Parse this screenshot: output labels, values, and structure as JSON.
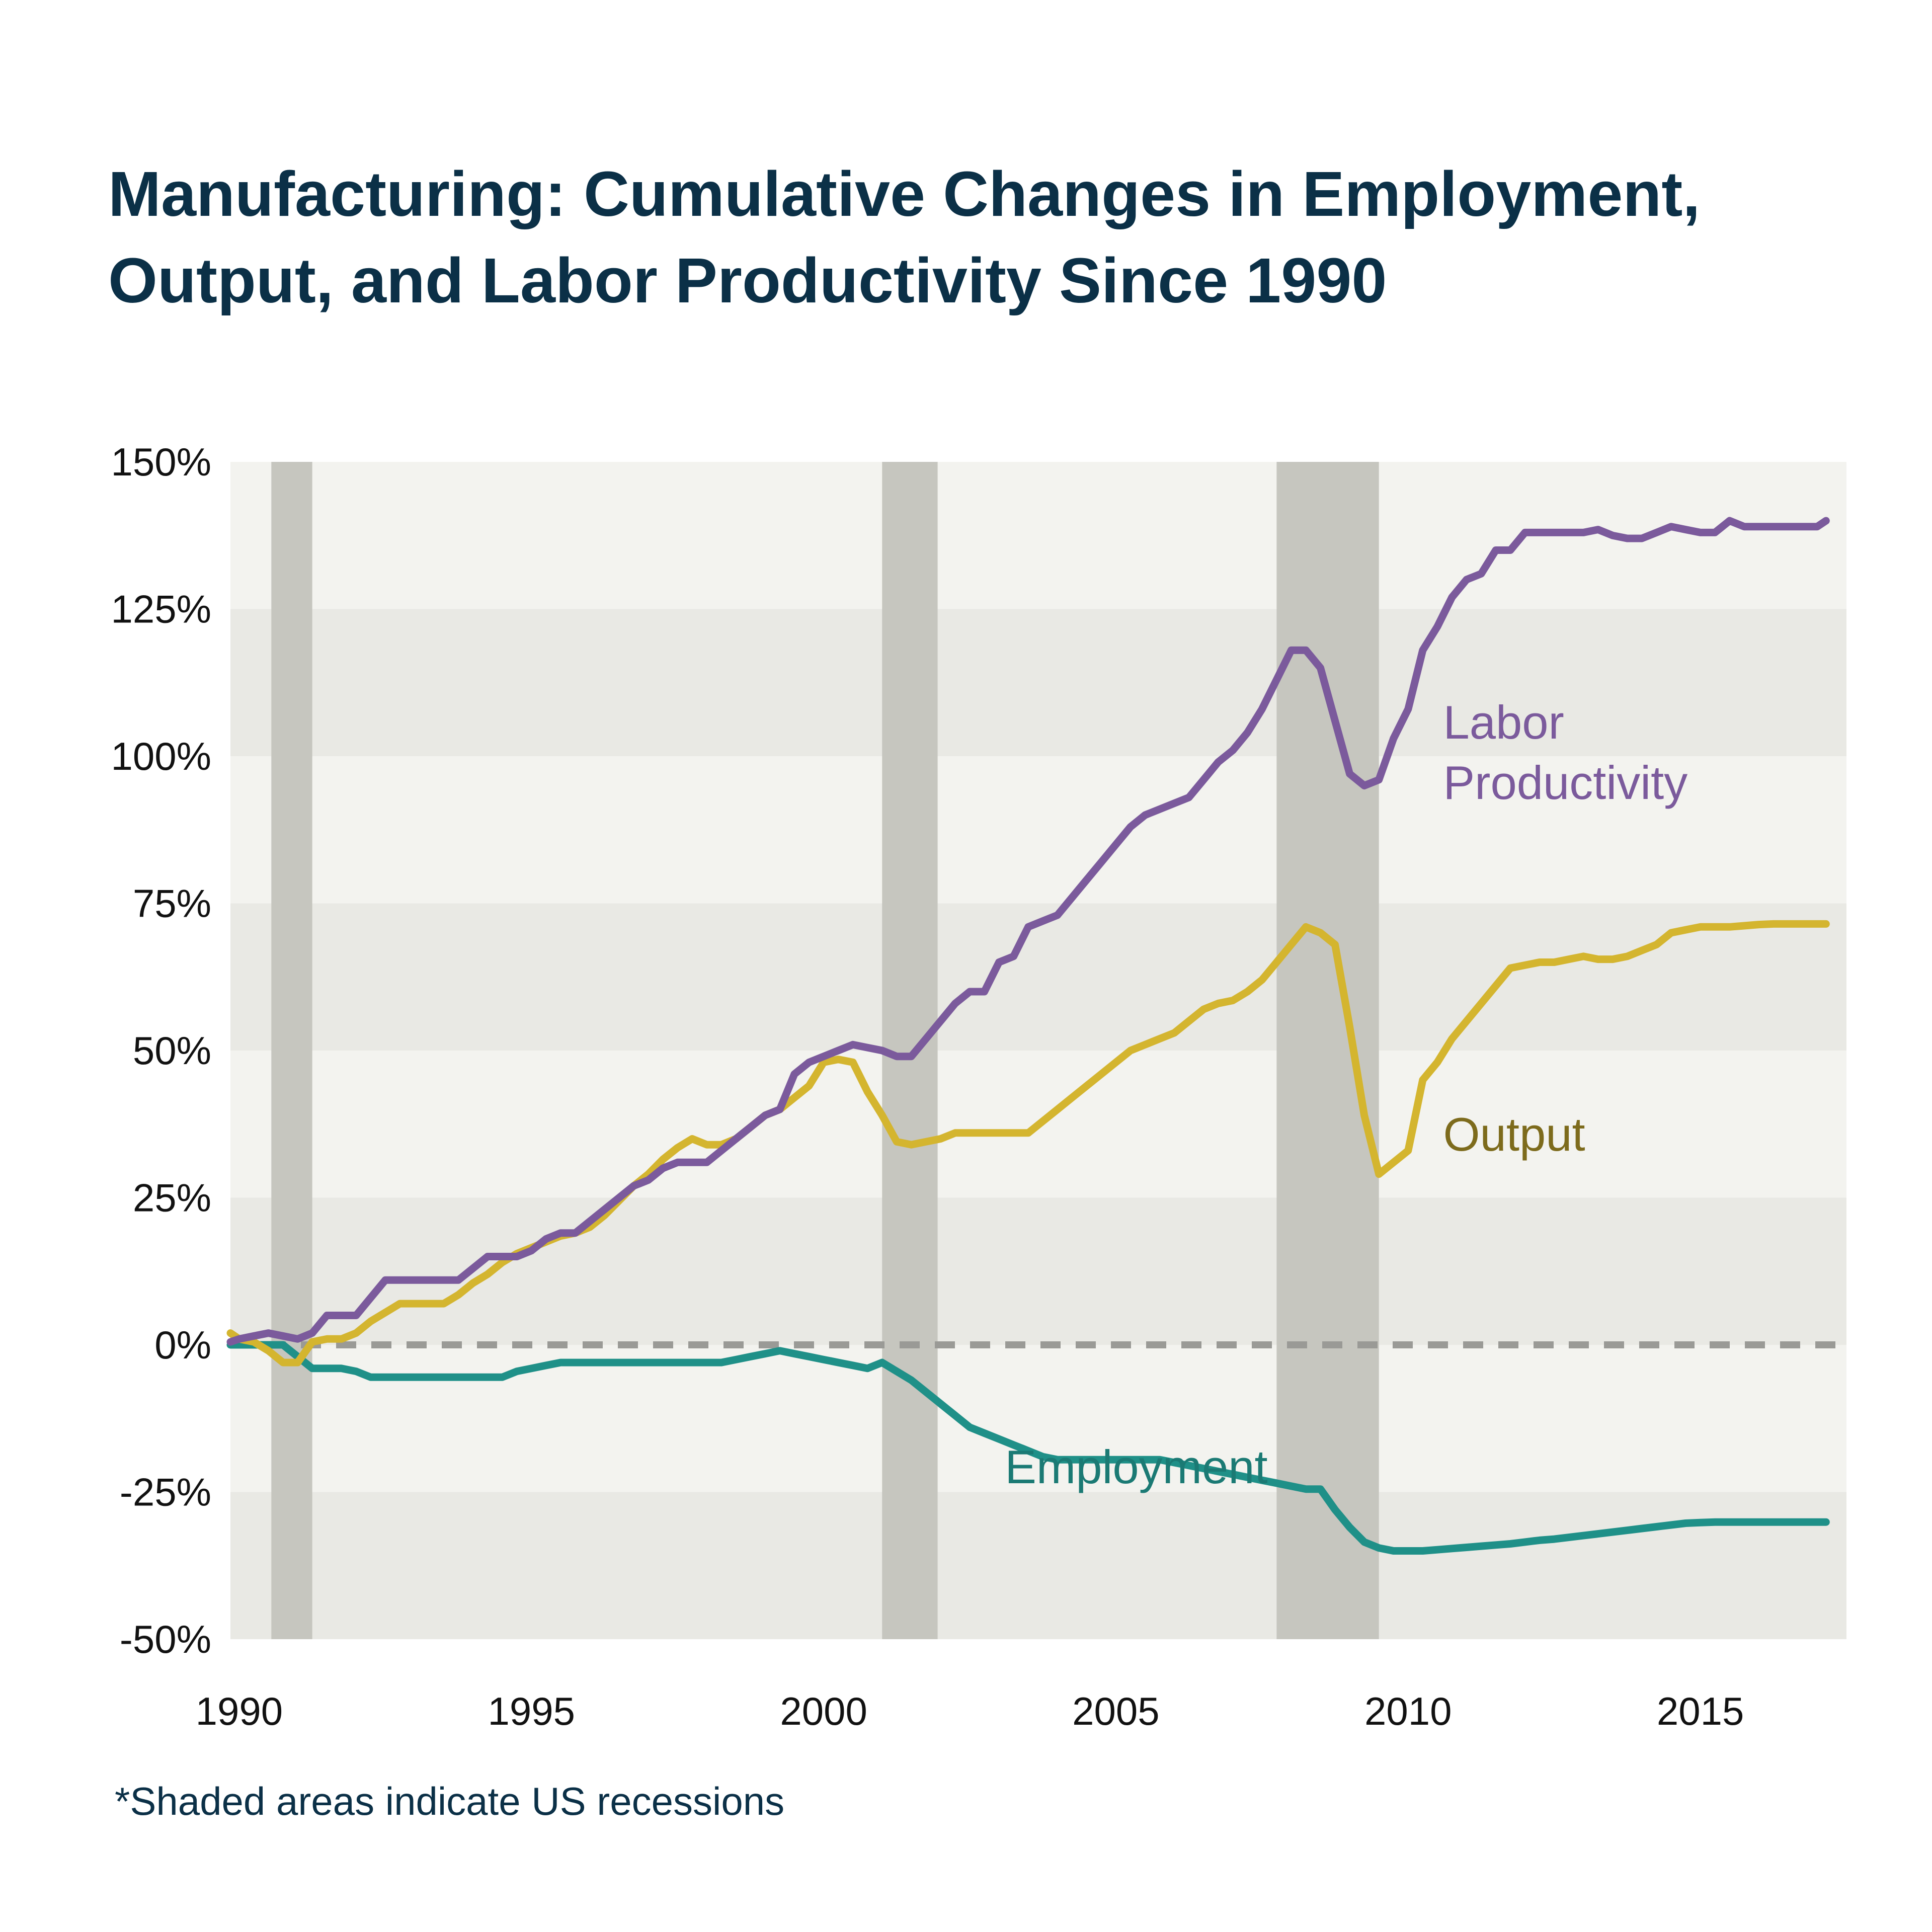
{
  "title_line1": "Manufacturing: Cumulative Changes in Employment,",
  "title_line2": "Output, and Labor Productivity Since 1990",
  "footnote": "*Shaded areas indicate US recessions",
  "colors": {
    "labor_productivity": "#7b5a9c",
    "output": "#d4b52f",
    "output_label": "#7d6b1c",
    "employment": "#1f9088",
    "employment_label": "#1b7a74",
    "recession_band": "#c6c6bf",
    "band_light": "#f3f3ef",
    "band_dark": "#e9e9e4",
    "zero_line": "#9a9a96",
    "title": "#0b3047"
  },
  "chart_data": {
    "type": "line",
    "title": "Manufacturing: Cumulative Changes in Employment, Output, and Labor Productivity Since 1990",
    "xlabel": "",
    "ylabel": "",
    "xlim": [
      1989.85,
      2017.5
    ],
    "ylim": [
      -50,
      150
    ],
    "x_ticks": [
      1990,
      1995,
      2000,
      2005,
      2010,
      2015
    ],
    "y_ticks": [
      150,
      125,
      100,
      75,
      50,
      25,
      0,
      -25,
      -50
    ],
    "y_tick_labels": [
      "150%",
      "125%",
      "100%",
      "75%",
      "50%",
      "25%",
      "0%",
      "-25%",
      "-50%"
    ],
    "recessions": [
      [
        1990.55,
        1991.25
      ],
      [
        2001.0,
        2001.95
      ],
      [
        2007.75,
        2009.5
      ]
    ],
    "series": [
      {
        "name": "Labor Productivity",
        "label_lines": [
          "Labor",
          "Productivity"
        ],
        "x": [
          1989.85,
          1990.0,
          1990.25,
          1990.5,
          1990.75,
          1991.0,
          1991.25,
          1991.5,
          1991.75,
          1992.0,
          1992.25,
          1992.5,
          1992.75,
          1993.0,
          1993.25,
          1993.5,
          1993.75,
          1994.0,
          1994.25,
          1994.5,
          1994.75,
          1995.0,
          1995.25,
          1995.5,
          1995.75,
          1996.0,
          1996.25,
          1996.5,
          1996.75,
          1997.0,
          1997.25,
          1997.5,
          1997.75,
          1998.0,
          1998.25,
          1998.5,
          1998.75,
          1999.0,
          1999.25,
          1999.5,
          1999.75,
          2000.0,
          2000.25,
          2000.5,
          2000.75,
          2001.0,
          2001.25,
          2001.5,
          2001.75,
          2002.0,
          2002.25,
          2002.5,
          2002.75,
          2003.0,
          2003.25,
          2003.5,
          2003.75,
          2004.0,
          2004.25,
          2004.5,
          2004.75,
          2005.0,
          2005.25,
          2005.5,
          2005.75,
          2006.0,
          2006.25,
          2006.5,
          2006.75,
          2007.0,
          2007.25,
          2007.5,
          2007.75,
          2008.0,
          2008.25,
          2008.5,
          2008.75,
          2009.0,
          2009.25,
          2009.5,
          2009.75,
          2010.0,
          2010.25,
          2010.5,
          2010.75,
          2011.0,
          2011.25,
          2011.5,
          2011.75,
          2012.0,
          2012.25,
          2012.5,
          2012.75,
          2013.0,
          2013.25,
          2013.5,
          2013.75,
          2014.0,
          2014.25,
          2014.5,
          2014.75,
          2015.0,
          2015.25,
          2015.5,
          2015.75,
          2016.0,
          2016.25,
          2016.5,
          2016.75,
          2017.0,
          2017.15
        ],
        "values": [
          0.5,
          1,
          1.5,
          2,
          1.5,
          1,
          2,
          5,
          5,
          5,
          8,
          11,
          11,
          11,
          11,
          11,
          11,
          13,
          15,
          15,
          15,
          16,
          18,
          19,
          19,
          21,
          23,
          25,
          27,
          28,
          30,
          31,
          31,
          31,
          33,
          35,
          37,
          39,
          40,
          46,
          48,
          49,
          50,
          51,
          50.5,
          50,
          49,
          49,
          52,
          55,
          58,
          60,
          60,
          65,
          66,
          71,
          72,
          73,
          76,
          79,
          82,
          85,
          88,
          90,
          91,
          92,
          93,
          96,
          99,
          101,
          104,
          108,
          113,
          118,
          118,
          115,
          106,
          97,
          95,
          96,
          103,
          108,
          118,
          122,
          127,
          130,
          131,
          135,
          135,
          138,
          138,
          138,
          138,
          138,
          138.5,
          137.5,
          137,
          137,
          138,
          139,
          138.5,
          138,
          138,
          140,
          139,
          139,
          139,
          139,
          139,
          139,
          140
        ]
      },
      {
        "name": "Output",
        "label_lines": [
          "Output"
        ],
        "x": [
          1989.85,
          1990.0,
          1990.25,
          1990.5,
          1990.75,
          1991.0,
          1991.25,
          1991.5,
          1991.75,
          1992.0,
          1992.25,
          1992.5,
          1992.75,
          1993.0,
          1993.25,
          1993.5,
          1993.75,
          1994.0,
          1994.25,
          1994.5,
          1994.75,
          1995.0,
          1995.25,
          1995.5,
          1995.75,
          1996.0,
          1996.25,
          1996.5,
          1996.75,
          1997.0,
          1997.25,
          1997.5,
          1997.75,
          1998.0,
          1998.25,
          1998.5,
          1998.75,
          1999.0,
          1999.25,
          1999.5,
          1999.75,
          2000.0,
          2000.25,
          2000.5,
          2000.75,
          2001.0,
          2001.25,
          2001.5,
          2001.75,
          2002.0,
          2002.25,
          2002.5,
          2002.75,
          2003.0,
          2003.25,
          2003.5,
          2003.75,
          2004.0,
          2004.25,
          2004.5,
          2004.75,
          2005.0,
          2005.25,
          2005.5,
          2005.75,
          2006.0,
          2006.25,
          2006.5,
          2006.75,
          2007.0,
          2007.25,
          2007.5,
          2007.75,
          2008.0,
          2008.25,
          2008.5,
          2008.75,
          2009.0,
          2009.25,
          2009.5,
          2009.75,
          2010.0,
          2010.25,
          2010.5,
          2010.75,
          2011.0,
          2011.25,
          2011.5,
          2011.75,
          2012.0,
          2012.25,
          2012.5,
          2012.75,
          2013.0,
          2013.25,
          2013.5,
          2013.75,
          2014.0,
          2014.25,
          2014.5,
          2014.75,
          2015.0,
          2015.25,
          2015.5,
          2015.75,
          2016.0,
          2016.25,
          2016.5,
          2016.75,
          2017.0,
          2017.15
        ],
        "values": [
          2,
          1,
          0.5,
          -1,
          -3,
          -3,
          0.5,
          1,
          1,
          2,
          4,
          5.5,
          7,
          7,
          7,
          7,
          8.5,
          10.5,
          12,
          14,
          15.5,
          16.5,
          17.5,
          18.5,
          19,
          20,
          22,
          24.5,
          27,
          29,
          31.5,
          33.5,
          35,
          34,
          34,
          35,
          37,
          39,
          40,
          42,
          44,
          48,
          48.5,
          48,
          43,
          39,
          34.5,
          34,
          34.5,
          35,
          36,
          36,
          36,
          36,
          36,
          36,
          38,
          40,
          42,
          44,
          46,
          48,
          50,
          51,
          52,
          53,
          55,
          57,
          58,
          58.5,
          60,
          62,
          65,
          68,
          71,
          70,
          68,
          54,
          39,
          29,
          31,
          33,
          45,
          48,
          52,
          55,
          58,
          61,
          64,
          64.5,
          65,
          65,
          65.5,
          66,
          65.5,
          65.5,
          66,
          67,
          68,
          70,
          70.5,
          71,
          71,
          71,
          71.2,
          71.4,
          71.5,
          71.5,
          71.5,
          71.5,
          71.5
        ]
      },
      {
        "name": "Employment",
        "label_lines": [
          "Employment"
        ],
        "x": [
          1989.85,
          1990.0,
          1990.25,
          1990.5,
          1990.75,
          1991.0,
          1991.25,
          1991.5,
          1991.75,
          1992.0,
          1992.25,
          1992.5,
          1992.75,
          1993.0,
          1993.25,
          1993.5,
          1993.75,
          1994.0,
          1994.25,
          1994.5,
          1994.75,
          1995.0,
          1995.25,
          1995.5,
          1995.75,
          1996.0,
          1996.25,
          1996.5,
          1996.75,
          1997.0,
          1997.25,
          1997.5,
          1997.75,
          1998.0,
          1998.25,
          1998.5,
          1998.75,
          1999.0,
          1999.25,
          1999.5,
          1999.75,
          2000.0,
          2000.25,
          2000.5,
          2000.75,
          2001.0,
          2001.25,
          2001.5,
          2001.75,
          2002.0,
          2002.25,
          2002.5,
          2002.75,
          2003.0,
          2003.25,
          2003.5,
          2003.75,
          2004.0,
          2004.25,
          2004.5,
          2004.75,
          2005.0,
          2005.25,
          2005.5,
          2005.75,
          2006.0,
          2006.25,
          2006.5,
          2006.75,
          2007.0,
          2007.25,
          2007.5,
          2007.75,
          2008.0,
          2008.25,
          2008.5,
          2008.75,
          2009.0,
          2009.25,
          2009.5,
          2009.75,
          2010.0,
          2010.25,
          2010.5,
          2010.75,
          2011.0,
          2011.25,
          2011.5,
          2011.75,
          2012.0,
          2012.25,
          2012.5,
          2012.75,
          2013.0,
          2013.25,
          2013.5,
          2013.75,
          2014.0,
          2014.25,
          2014.5,
          2014.75,
          2015.0,
          2015.25,
          2015.5,
          2015.75,
          2016.0,
          2016.25,
          2016.5,
          2016.75,
          2017.0,
          2017.15
        ],
        "values": [
          0,
          0,
          0,
          0,
          0,
          -2,
          -4,
          -4,
          -4,
          -4.5,
          -5.5,
          -5.5,
          -5.5,
          -5.5,
          -5.5,
          -5.5,
          -5.5,
          -5.5,
          -5.5,
          -5.5,
          -4.5,
          -4,
          -3.5,
          -3,
          -3,
          -3,
          -3,
          -3,
          -3,
          -3,
          -3,
          -3,
          -3,
          -3,
          -3,
          -2.5,
          -2,
          -1.5,
          -1,
          -1.5,
          -2,
          -2.5,
          -3,
          -3.5,
          -4,
          -3,
          -4.5,
          -6,
          -8,
          -10,
          -12,
          -14,
          -15,
          -16,
          -17,
          -18,
          -19,
          -19.5,
          -19.5,
          -19.5,
          -19.5,
          -19.5,
          -19.5,
          -19.5,
          -19.5,
          -20,
          -20.5,
          -21,
          -21.5,
          -22,
          -22.5,
          -23,
          -23.5,
          -24,
          -24.5,
          -24.5,
          -28,
          -31,
          -33.5,
          -34.5,
          -35,
          -35,
          -35,
          -34.8,
          -34.6,
          -34.4,
          -34.2,
          -34,
          -33.8,
          -33.5,
          -33.2,
          -33,
          -32.7,
          -32.4,
          -32.1,
          -31.8,
          -31.5,
          -31.2,
          -30.9,
          -30.6,
          -30.3,
          -30.2,
          -30.1,
          -30.1,
          -30.1,
          -30.1,
          -30.1,
          -30.1,
          -30.1,
          -30.1,
          -30.1
        ]
      }
    ]
  }
}
